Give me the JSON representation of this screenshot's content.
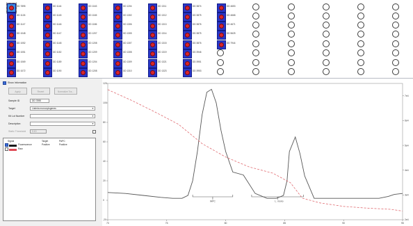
{
  "plate": {
    "filled_columns": [
      [
        "DD 7895",
        "DD 1126",
        "DD 1147",
        "DD 1048",
        "DD 1052",
        "DD 1051",
        "DD 1069",
        "DD 1072"
      ],
      [
        "DD 1144",
        "DD 1145",
        "DD 1146",
        "DD 1147",
        "DD 1148",
        "DD 1152",
        "DD 1189",
        "DD 1190"
      ],
      [
        "DD 1163",
        "DD 1165",
        "DD 1186",
        "DD 1207",
        "DD 1208",
        "DD 1209",
        "DD 1204",
        "DD 1208"
      ],
      [
        "DD 1204",
        "DD 1302",
        "DD 1306",
        "DD 1305",
        "DD 1307",
        "DD 1308",
        "DD 1309",
        "DD 1310"
      ],
      [
        "DD 1311",
        "DD 1312",
        "DD 1313",
        "DD 1314",
        "DD 1315",
        "DD 1319",
        "DD 1321",
        "DD 1323"
      ],
      [
        "DD 3874",
        "DD 3875",
        "DD 3876",
        "DD 3875",
        "DD 3876",
        "DD 3946",
        "DD 3951",
        "DD 3953"
      ],
      [
        "DD 4653",
        "DD 4668",
        "DD 4671",
        "DD 5625",
        "DD 7944"
      ]
    ],
    "empty_wells_after": {
      "col7": 3,
      "col8to13": 8
    }
  },
  "sample_panel": {
    "show_information_label": "Show Information",
    "buttons": [
      "Apply",
      "Revert",
      "Normalize Tra..."
    ],
    "fields": {
      "sample_id": {
        "label": "Sample ID",
        "value": "DD 7895"
      },
      "target": {
        "label": "Target",
        "value": "Listeria monocytogenes"
      },
      "kit_lot_number": {
        "label": "Kit Lot Number",
        "value": ""
      },
      "description": {
        "label": "Description",
        "value": ""
      },
      "static_threshold": {
        "label": "Static Threshold",
        "value": "0.10"
      }
    },
    "signal_table": {
      "headers": [
        "Signal",
        "Target",
        "PAPC"
      ],
      "rows": [
        {
          "signal": "Fluorescence",
          "target": "Positive",
          "papc": "Positive",
          "checked": true,
          "swatch": "#1a1a1a"
        },
        {
          "signal": "Raw",
          "target": "",
          "papc": "",
          "checked": false,
          "swatch": "#e04a55"
        }
      ]
    }
  },
  "chart_data": {
    "type": "line",
    "x_ticks": [
      "70",
      "75",
      "80",
      "85",
      "90",
      "95"
    ],
    "y_left_ticks": [
      "120",
      "100",
      "80",
      "60",
      "40",
      "20",
      "0",
      "-20"
    ],
    "y_right_ticks": [
      "7e4",
      "6e4",
      "5e4",
      "4e4",
      "3e4",
      "2e4"
    ],
    "xlim": [
      70,
      95
    ],
    "ylim": [
      -20,
      120
    ],
    "y_right_lim": [
      20000,
      75000
    ],
    "marker_labels": [
      "IAPC",
      "L. mono"
    ],
    "series": [
      {
        "color": "#555555",
        "dash": false,
        "x": [
          70,
          71.5,
          73,
          74.5,
          75.5,
          76.3,
          76.8,
          77.2,
          77.6,
          78.0,
          78.4,
          78.8,
          79.2,
          79.6,
          80.0,
          80.6,
          81.5,
          82.5,
          83.5,
          84.3,
          84.9,
          85.2,
          85.4,
          85.9,
          86.3,
          86.7,
          87.5,
          88.5,
          89.5,
          90.5,
          91.5,
          92.3,
          93.0,
          93.8,
          94.3,
          95.0
        ],
        "y": [
          8,
          7,
          5,
          3,
          2,
          2,
          5,
          20,
          50,
          88,
          111,
          114,
          100,
          72,
          50,
          29,
          26,
          7,
          2,
          2,
          5,
          20,
          50,
          65,
          48,
          25,
          2,
          2,
          2,
          2,
          2,
          2,
          2,
          4,
          6,
          7
        ]
      },
      {
        "color": "#e06a70",
        "dash": true,
        "y_axis": "right",
        "x": [
          70,
          72,
          74,
          76,
          78,
          80,
          82,
          84,
          85.5,
          86.5,
          88,
          90,
          92,
          94,
          95
        ],
        "y": [
          72500,
          68200,
          63500,
          58500,
          50700,
          45300,
          41300,
          38800,
          34900,
          28700,
          26800,
          25400,
          24700,
          24200,
          23500
        ]
      }
    ]
  }
}
